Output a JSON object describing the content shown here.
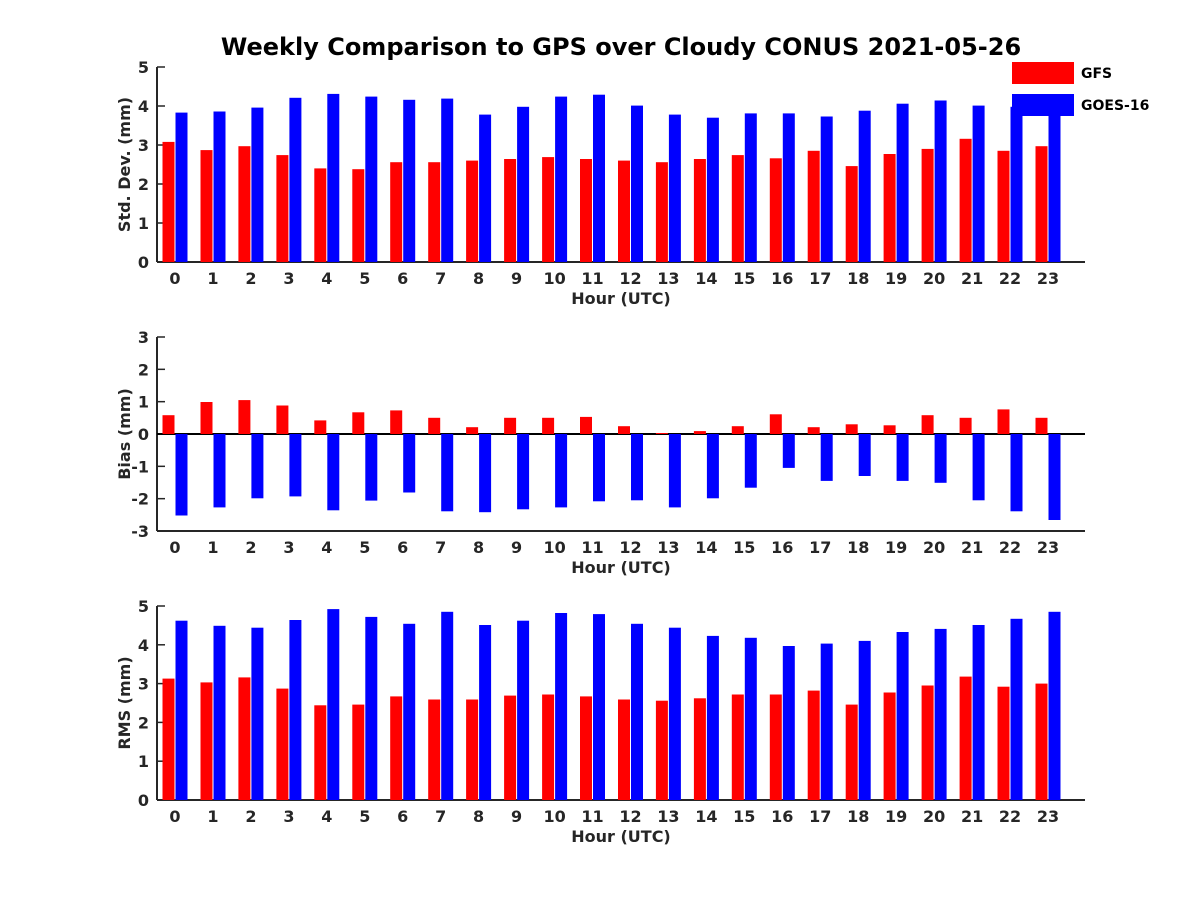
{
  "title": "Weekly Comparison to GPS over Cloudy CONUS 2021-05-26",
  "colors": {
    "GFS": "#ff0000",
    "GOES-16": "#0000ff"
  },
  "legend": {
    "placement": "top-right",
    "entries": [
      "GFS",
      "GOES-16"
    ]
  },
  "chart_data": [
    {
      "type": "bar",
      "ylabel": "Std. Dev. (mm)",
      "xlabel": "Hour (UTC)",
      "ylim": [
        0,
        5
      ],
      "yticks": [
        0,
        1,
        2,
        3,
        4,
        5
      ],
      "categories": [
        "0",
        "1",
        "2",
        "3",
        "4",
        "5",
        "6",
        "7",
        "8",
        "9",
        "10",
        "11",
        "12",
        "13",
        "14",
        "15",
        "16",
        "17",
        "18",
        "19",
        "20",
        "21",
        "22",
        "23"
      ],
      "series": [
        {
          "name": "GFS",
          "values": [
            3.08,
            2.87,
            2.97,
            2.74,
            2.4,
            2.38,
            2.56,
            2.56,
            2.6,
            2.64,
            2.69,
            2.64,
            2.6,
            2.56,
            2.64,
            2.74,
            2.66,
            2.85,
            2.46,
            2.77,
            2.9,
            3.16,
            2.85,
            2.97
          ]
        },
        {
          "name": "GOES-16",
          "values": [
            3.83,
            3.86,
            3.96,
            4.21,
            4.31,
            4.24,
            4.16,
            4.19,
            3.78,
            3.98,
            4.24,
            4.29,
            4.01,
            3.78,
            3.7,
            3.81,
            3.81,
            3.73,
            3.88,
            4.06,
            4.14,
            4.01,
            3.98,
            3.83
          ]
        }
      ]
    },
    {
      "type": "bar",
      "ylabel": "Bias (mm)",
      "xlabel": "Hour (UTC)",
      "ylim": [
        -3,
        3
      ],
      "yticks": [
        -3,
        -2,
        -1,
        0,
        1,
        2,
        3
      ],
      "categories": [
        "0",
        "1",
        "2",
        "3",
        "4",
        "5",
        "6",
        "7",
        "8",
        "9",
        "10",
        "11",
        "12",
        "13",
        "14",
        "15",
        "16",
        "17",
        "18",
        "19",
        "20",
        "21",
        "22",
        "23"
      ],
      "series": [
        {
          "name": "GFS",
          "values": [
            0.58,
            0.99,
            1.05,
            0.88,
            0.42,
            0.67,
            0.73,
            0.5,
            0.21,
            0.5,
            0.5,
            0.53,
            0.24,
            0.03,
            0.09,
            0.24,
            0.61,
            0.21,
            0.3,
            0.27,
            0.58,
            0.5,
            0.76,
            0.5
          ]
        },
        {
          "name": "GOES-16",
          "values": [
            -2.52,
            -2.27,
            -1.99,
            -1.93,
            -2.36,
            -2.06,
            -1.81,
            -2.39,
            -2.42,
            -2.33,
            -2.27,
            -2.08,
            -2.05,
            -2.27,
            -1.99,
            -1.66,
            -1.05,
            -1.45,
            -1.3,
            -1.45,
            -1.51,
            -2.05,
            -2.39,
            -2.66
          ]
        }
      ]
    },
    {
      "type": "bar",
      "ylabel": "RMS (mm)",
      "xlabel": "Hour (UTC)",
      "ylim": [
        0,
        5
      ],
      "yticks": [
        0,
        1,
        2,
        3,
        4,
        5
      ],
      "categories": [
        "0",
        "1",
        "2",
        "3",
        "4",
        "5",
        "6",
        "7",
        "8",
        "9",
        "10",
        "11",
        "12",
        "13",
        "14",
        "15",
        "16",
        "17",
        "18",
        "19",
        "20",
        "21",
        "22",
        "23"
      ],
      "series": [
        {
          "name": "GFS",
          "values": [
            3.13,
            3.03,
            3.16,
            2.87,
            2.44,
            2.46,
            2.67,
            2.59,
            2.59,
            2.69,
            2.72,
            2.67,
            2.59,
            2.56,
            2.62,
            2.72,
            2.72,
            2.82,
            2.46,
            2.77,
            2.95,
            3.18,
            2.92,
            3.0
          ]
        },
        {
          "name": "GOES-16",
          "values": [
            4.62,
            4.49,
            4.44,
            4.64,
            4.92,
            4.72,
            4.54,
            4.85,
            4.51,
            4.62,
            4.82,
            4.79,
            4.54,
            4.44,
            4.23,
            4.18,
            3.97,
            4.03,
            4.1,
            4.33,
            4.41,
            4.51,
            4.67,
            4.85
          ]
        }
      ]
    }
  ]
}
